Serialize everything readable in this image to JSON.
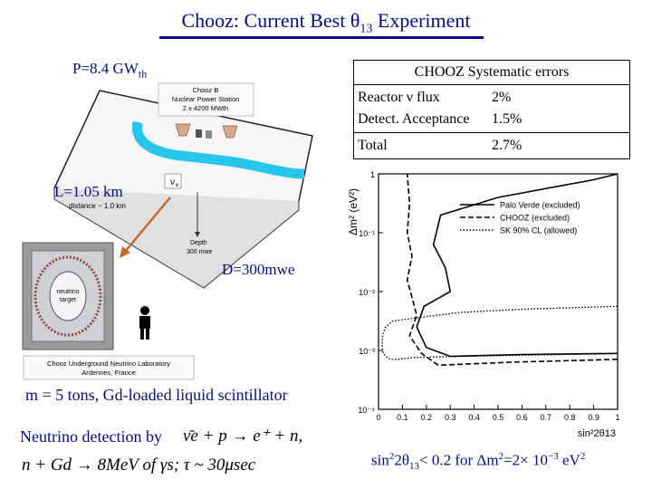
{
  "title": {
    "main": "Chooz: Current Best θ",
    "sub": "13",
    "suffix": " Experiment"
  },
  "power": {
    "label": "P=8.4 GW",
    "sub": "th"
  },
  "systematics": {
    "heading": "CHOOZ Systematic errors",
    "rows": [
      {
        "name": "Reactor ν flux",
        "value": "2%"
      },
      {
        "name": "Detect. Acceptance",
        "value": "1.5%"
      },
      {
        "name": "Total",
        "value": "2.7%"
      }
    ]
  },
  "figure_labels": {
    "station_line1": "Chooz  B",
    "station_line2": "Nuclear  Power  Station",
    "station_line3": "2  x  4200  MWth",
    "nu_symbol": "ν",
    "nu_sub": "e",
    "distance_small": "distance  ~  1.0  km",
    "depth_line1": "Depth",
    "depth_line2": "300  mwe",
    "target_line1": "neutrino",
    "target_line2": "target",
    "lab_line1": "Chooz  Underground  Neutrino  Laboratory",
    "lab_line2": "Ardennes,  France"
  },
  "distance_label": "L=1.05 km",
  "depth_label": "D=300mwe",
  "detector_text": "m = 5 tons, Gd-loaded liquid scintillator",
  "detection": {
    "prefix": "Neutrino detection by ",
    "reaction": "ν̄e + p → e⁺ + n,",
    "capture": "n + Gd → 8MeV  of γs;   τ ~ 30μsec"
  },
  "result": {
    "text_a": "sin",
    "sup2a": "2",
    "text_b": "2θ",
    "sub13": "13",
    "text_c": "< 0.2 for Δm",
    "sup2b": "2",
    "text_d": "=2× 10",
    "exp": "−3",
    "text_e": " eV",
    "sup2c": "2"
  },
  "chart_data": {
    "type": "line",
    "xlabel": "sin²2θ13",
    "ylabel": "Δm² (eV²)",
    "xlim": [
      0,
      1
    ],
    "ylim_log10": [
      -4,
      0
    ],
    "x_ticks": [
      "0",
      "0.1",
      "0.2",
      "0.3",
      "0.4",
      "0.5",
      "0.6",
      "0.7",
      "0.8",
      "0.9",
      "1"
    ],
    "y_ticks": [
      "1",
      "10⁻¹",
      "10⁻²",
      "10⁻³",
      "10⁻⁴"
    ],
    "legend": [
      "Palo Verde (excluded)",
      "CHOOZ (excluded)",
      "SK 90% CL (allowed)"
    ],
    "series": [
      {
        "name": "Palo Verde (excluded)",
        "style": "solid",
        "x": [
          1.0,
          0.6,
          0.3,
          0.2,
          0.16,
          0.19,
          0.3,
          0.28,
          0.23,
          0.26,
          0.5,
          0.9,
          1.0
        ],
        "y_log10": [
          -3.05,
          -3.07,
          -3.1,
          -2.95,
          -2.6,
          -2.25,
          -2.0,
          -1.6,
          -1.2,
          -0.7,
          -0.4,
          -0.1,
          0.0
        ]
      },
      {
        "name": "CHOOZ (excluded)",
        "style": "dashed",
        "x": [
          1.0,
          0.55,
          0.25,
          0.18,
          0.13,
          0.16,
          0.14,
          0.12,
          0.14,
          0.12,
          0.13,
          0.12
        ],
        "y_log10": [
          -3.15,
          -3.2,
          -3.25,
          -3.05,
          -2.75,
          -2.4,
          -2.1,
          -1.8,
          -1.4,
          -1.0,
          -0.5,
          0.0
        ]
      },
      {
        "name": "SK 90% CL (allowed)",
        "style": "dotted",
        "x": [
          1.0,
          0.6,
          0.35,
          0.15,
          0.06,
          0.03,
          0.02,
          0.015,
          0.015,
          0.02,
          0.03,
          0.05,
          0.08,
          0.15,
          0.35,
          0.6,
          1.0
        ],
        "y_log10": [
          -2.25,
          -2.3,
          -2.35,
          -2.45,
          -2.5,
          -2.6,
          -2.7,
          -2.8,
          -2.95,
          -3.05,
          -3.1,
          -3.15,
          -3.15,
          -3.12,
          -3.1,
          -3.08,
          -3.05
        ]
      }
    ]
  }
}
